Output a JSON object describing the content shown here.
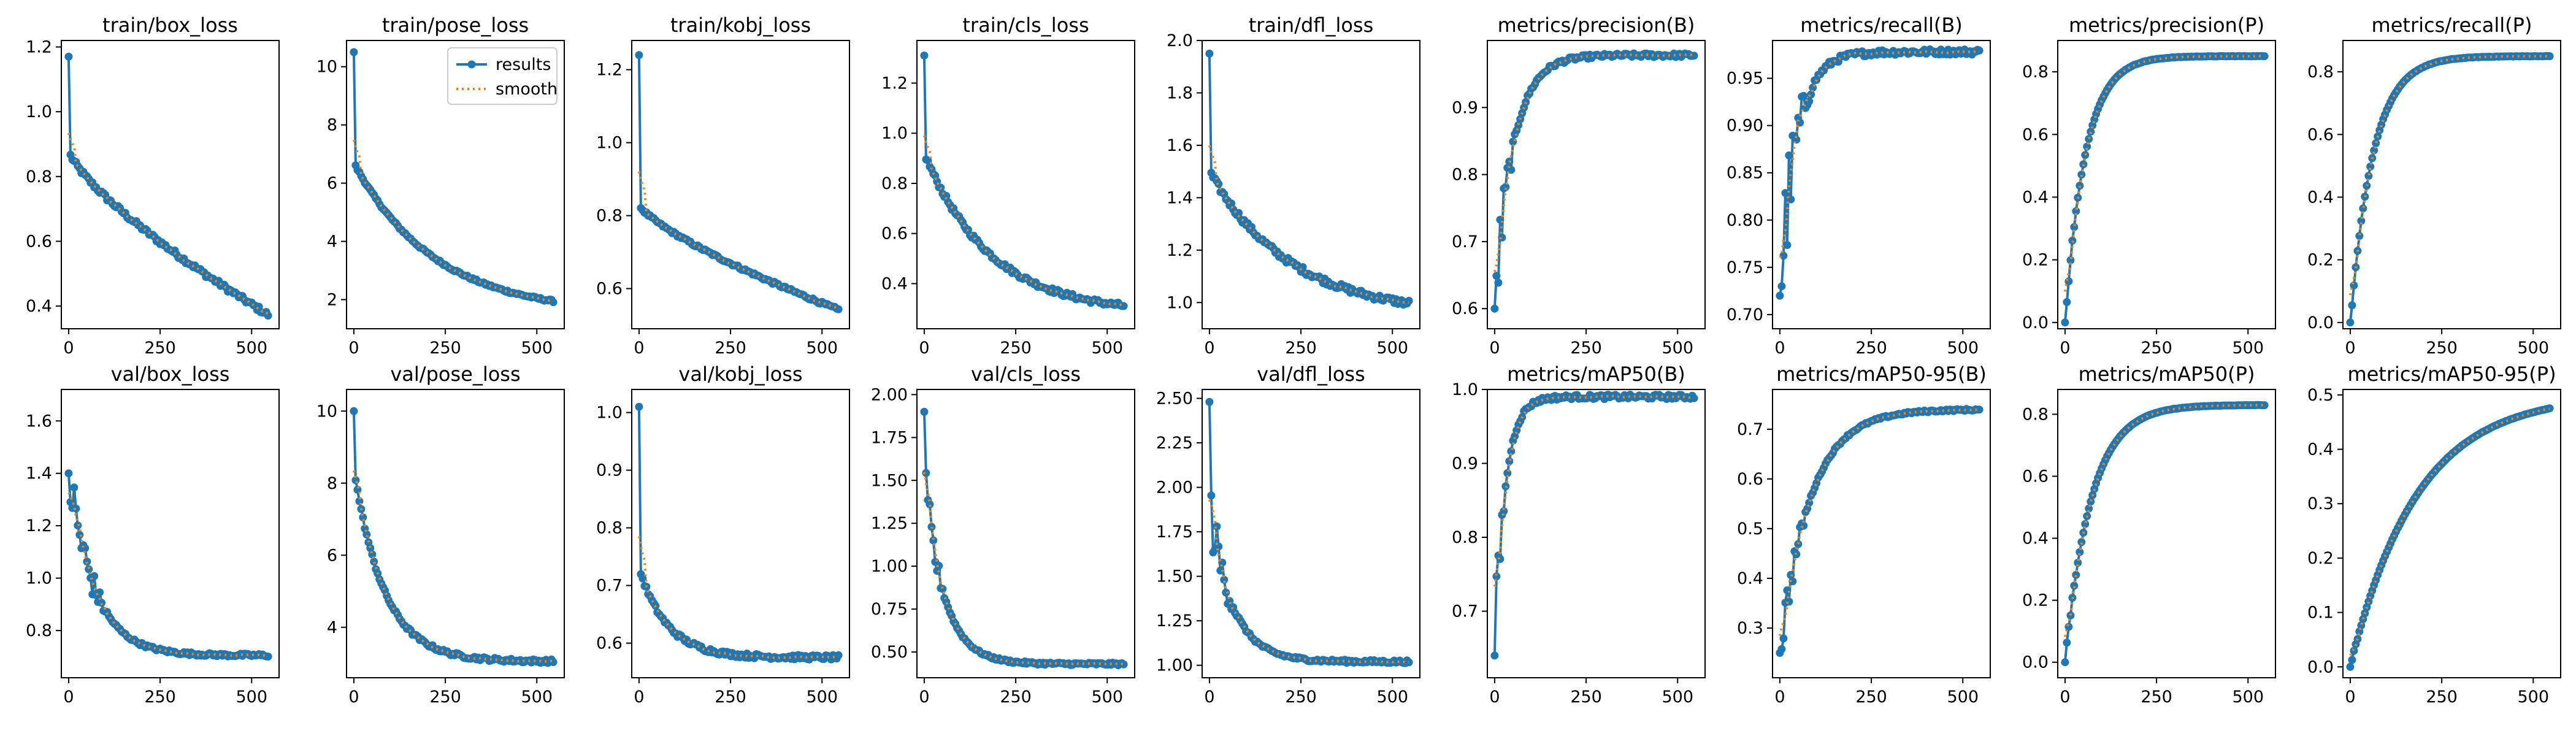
{
  "colors": {
    "results": "#1f77b4",
    "smooth": "#ff7f0e"
  },
  "legend": {
    "entries": [
      "results",
      "smooth"
    ],
    "placement": "top-right",
    "panel": "train/pose_loss"
  },
  "chart_data": [
    {
      "type": "line",
      "title": "train/box_loss",
      "xlim": [
        -20,
        575
      ],
      "ylim": [
        0.33,
        1.22
      ],
      "xticks": [
        0,
        250,
        500
      ],
      "yticks": [
        0.4,
        0.6,
        0.8,
        1.0,
        1.2
      ],
      "ytick_labels": [
        "0.4",
        "0.6",
        "0.8",
        "1.0",
        "1.2"
      ],
      "curve": {
        "kind": "decay",
        "start": 1.17,
        "hold": 0.88,
        "end": 0.37,
        "k": 0.0011,
        "noise": 0.008
      },
      "series": [
        {
          "name": "results"
        },
        {
          "name": "smooth"
        }
      ]
    },
    {
      "type": "line",
      "title": "train/pose_loss",
      "xlim": [
        -20,
        575
      ],
      "ylim": [
        1.0,
        10.9
      ],
      "xticks": [
        0,
        250,
        500
      ],
      "yticks": [
        2,
        4,
        6,
        8,
        10
      ],
      "ytick_labels": [
        "2",
        "4",
        "6",
        "8",
        "10"
      ],
      "curve": {
        "kind": "decay",
        "start": 10.5,
        "hold": 6.7,
        "end": 1.5,
        "k": 0.0045,
        "noise": 0.04
      },
      "series": [
        {
          "name": "results"
        },
        {
          "name": "smooth"
        }
      ]
    },
    {
      "type": "line",
      "title": "train/kobj_loss",
      "xlim": [
        -20,
        575
      ],
      "ylim": [
        0.49,
        1.28
      ],
      "xticks": [
        0,
        250,
        500
      ],
      "yticks": [
        0.6,
        0.8,
        1.0,
        1.2
      ],
      "ytick_labels": [
        "0.6",
        "0.8",
        "1.0",
        "1.2"
      ],
      "curve": {
        "kind": "decay",
        "start": 1.24,
        "hold": 0.83,
        "end": 0.54,
        "k": 0.0017,
        "noise": 0.004
      },
      "series": [
        {
          "name": "results"
        },
        {
          "name": "smooth"
        }
      ]
    },
    {
      "type": "line",
      "title": "train/cls_loss",
      "xlim": [
        -20,
        575
      ],
      "ylim": [
        0.22,
        1.37
      ],
      "xticks": [
        0,
        250,
        500
      ],
      "yticks": [
        0.4,
        0.6,
        0.8,
        1.0,
        1.2
      ],
      "ytick_labels": [
        "0.4",
        "0.6",
        "0.8",
        "1.0",
        "1.2"
      ],
      "curve": {
        "kind": "decay",
        "start": 1.31,
        "hold": 0.92,
        "end": 0.28,
        "k": 0.0055,
        "noise": 0.01
      },
      "series": [
        {
          "name": "results"
        },
        {
          "name": "smooth"
        }
      ]
    },
    {
      "type": "line",
      "title": "train/dfl_loss",
      "xlim": [
        -20,
        575
      ],
      "ylim": [
        0.9,
        2.0
      ],
      "xticks": [
        0,
        250,
        500
      ],
      "yticks": [
        1.0,
        1.2,
        1.4,
        1.6,
        1.8,
        2.0
      ],
      "ytick_labels": [
        "1.0",
        "1.2",
        "1.4",
        "1.6",
        "1.8",
        "2.0"
      ],
      "curve": {
        "kind": "decay",
        "start": 1.95,
        "hold": 1.5,
        "end": 0.95,
        "k": 0.0045,
        "noise": 0.012
      },
      "series": [
        {
          "name": "results"
        },
        {
          "name": "smooth"
        }
      ]
    },
    {
      "type": "line",
      "title": "metrics/precision(B)",
      "xlim": [
        -20,
        575
      ],
      "ylim": [
        0.57,
        1.0
      ],
      "xticks": [
        0,
        250,
        500
      ],
      "yticks": [
        0.6,
        0.7,
        0.8,
        0.9
      ],
      "ytick_labels": [
        "0.6",
        "0.7",
        "0.8",
        "0.9"
      ],
      "curve": {
        "kind": "rise",
        "start": 0.6,
        "end": 0.978,
        "k": 0.02,
        "noise": 0.06,
        "noise_until": 60
      },
      "series": [
        {
          "name": "results"
        },
        {
          "name": "smooth"
        }
      ]
    },
    {
      "type": "line",
      "title": "metrics/recall(B)",
      "xlim": [
        -20,
        575
      ],
      "ylim": [
        0.685,
        0.99
      ],
      "xticks": [
        0,
        250,
        500
      ],
      "yticks": [
        0.7,
        0.75,
        0.8,
        0.85,
        0.9,
        0.95
      ],
      "ytick_labels": [
        "0.70",
        "0.75",
        "0.80",
        "0.85",
        "0.90",
        "0.95"
      ],
      "curve": {
        "kind": "rise",
        "start": 0.72,
        "end": 0.978,
        "k": 0.022,
        "noise": 0.06,
        "noise_until": 90
      },
      "series": [
        {
          "name": "results"
        },
        {
          "name": "smooth"
        }
      ]
    },
    {
      "type": "line",
      "title": "metrics/precision(P)",
      "xlim": [
        -20,
        575
      ],
      "ylim": [
        -0.02,
        0.9
      ],
      "xticks": [
        0,
        250,
        500
      ],
      "yticks": [
        0.0,
        0.2,
        0.4,
        0.6,
        0.8
      ],
      "ytick_labels": [
        "0.0",
        "0.2",
        "0.4",
        "0.6",
        "0.8"
      ],
      "curve": {
        "kind": "rise",
        "start": 0.0,
        "end": 0.85,
        "k": 0.018,
        "noise": 0.012,
        "noise_until": 40
      },
      "series": [
        {
          "name": "results"
        },
        {
          "name": "smooth"
        }
      ]
    },
    {
      "type": "line",
      "title": "metrics/recall(P)",
      "xlim": [
        -20,
        575
      ],
      "ylim": [
        -0.02,
        0.9
      ],
      "xticks": [
        0,
        250,
        500
      ],
      "yticks": [
        0.0,
        0.2,
        0.4,
        0.6,
        0.8
      ],
      "ytick_labels": [
        "0.0",
        "0.2",
        "0.4",
        "0.6",
        "0.8"
      ],
      "curve": {
        "kind": "rise",
        "start": 0.0,
        "end": 0.85,
        "k": 0.016,
        "noise": 0.012,
        "noise_until": 40
      },
      "series": [
        {
          "name": "results"
        },
        {
          "name": "smooth"
        }
      ]
    },
    {
      "type": "line",
      "title": "val/box_loss",
      "xlim": [
        -20,
        575
      ],
      "ylim": [
        0.62,
        1.72
      ],
      "xticks": [
        0,
        250,
        500
      ],
      "yticks": [
        0.8,
        1.0,
        1.2,
        1.4,
        1.6
      ],
      "ytick_labels": [
        "0.8",
        "1.0",
        "1.2",
        "1.4",
        "1.6"
      ],
      "curve": {
        "kind": "decay",
        "start": 1.4,
        "hold": 1.4,
        "end": 0.705,
        "k": 0.014,
        "noise": 0.12,
        "noise_until": 110
      },
      "series": [
        {
          "name": "results"
        },
        {
          "name": "smooth"
        }
      ]
    },
    {
      "type": "line",
      "title": "val/pose_loss",
      "xlim": [
        -20,
        575
      ],
      "ylim": [
        2.6,
        10.6
      ],
      "xticks": [
        0,
        250,
        500
      ],
      "yticks": [
        4,
        6,
        8,
        10
      ],
      "ytick_labels": [
        "4",
        "6",
        "8",
        "10"
      ],
      "curve": {
        "kind": "decay",
        "start": 10.0,
        "hold": 8.4,
        "end": 3.05,
        "k": 0.012,
        "noise": 0.05
      },
      "series": [
        {
          "name": "results"
        },
        {
          "name": "smooth"
        }
      ]
    },
    {
      "type": "line",
      "title": "val/kobj_loss",
      "xlim": [
        -20,
        575
      ],
      "ylim": [
        0.54,
        1.04
      ],
      "xticks": [
        0,
        250,
        500
      ],
      "yticks": [
        0.6,
        0.7,
        0.8,
        0.9,
        1.0
      ],
      "ytick_labels": [
        "0.6",
        "0.7",
        "0.8",
        "0.9",
        "1.0"
      ],
      "curve": {
        "kind": "decay",
        "start": 1.01,
        "hold": 0.73,
        "end": 0.575,
        "k": 0.013,
        "noise": 0.004
      },
      "series": [
        {
          "name": "results"
        },
        {
          "name": "smooth"
        }
      ]
    },
    {
      "type": "line",
      "title": "val/cls_loss",
      "xlim": [
        -20,
        575
      ],
      "ylim": [
        0.35,
        2.03
      ],
      "xticks": [
        0,
        250,
        500
      ],
      "yticks": [
        0.5,
        0.75,
        1.0,
        1.25,
        1.5,
        1.75,
        2.0
      ],
      "ytick_labels": [
        "0.50",
        "0.75",
        "1.00",
        "1.25",
        "1.50",
        "1.75",
        "2.00"
      ],
      "curve": {
        "kind": "decay",
        "start": 1.9,
        "hold": 1.5,
        "end": 0.43,
        "k": 0.018,
        "noise": 0.15,
        "noise_until": 60
      },
      "series": [
        {
          "name": "results"
        },
        {
          "name": "smooth"
        }
      ]
    },
    {
      "type": "line",
      "title": "val/dfl_loss",
      "xlim": [
        -20,
        575
      ],
      "ylim": [
        0.93,
        2.55
      ],
      "xticks": [
        0,
        250,
        500
      ],
      "yticks": [
        1.0,
        1.25,
        1.5,
        1.75,
        2.0,
        2.25,
        2.5
      ],
      "ytick_labels": [
        "1.00",
        "1.25",
        "1.50",
        "1.75",
        "2.00",
        "2.25",
        "2.50"
      ],
      "curve": {
        "kind": "decay",
        "start": 2.48,
        "hold": 1.9,
        "end": 1.02,
        "k": 0.016,
        "noise": 0.17,
        "noise_until": 80
      },
      "series": [
        {
          "name": "results"
        },
        {
          "name": "smooth"
        }
      ]
    },
    {
      "type": "line",
      "title": "metrics/mAP50(B)",
      "xlim": [
        -20,
        575
      ],
      "ylim": [
        0.61,
        1.0
      ],
      "xticks": [
        0,
        250,
        500
      ],
      "yticks": [
        0.7,
        0.8,
        0.9,
        1.0
      ],
      "ytick_labels": [
        "0.7",
        "0.8",
        "0.9",
        "1.0"
      ],
      "curve": {
        "kind": "rise",
        "start": 0.64,
        "end": 0.99,
        "k": 0.035,
        "noise": 0.06,
        "noise_until": 30
      },
      "series": [
        {
          "name": "results"
        },
        {
          "name": "smooth"
        }
      ]
    },
    {
      "type": "line",
      "title": "metrics/mAP50-95(B)",
      "xlim": [
        -20,
        575
      ],
      "ylim": [
        0.2,
        0.78
      ],
      "xticks": [
        0,
        250,
        500
      ],
      "yticks": [
        0.3,
        0.4,
        0.5,
        0.6,
        0.7
      ],
      "ytick_labels": [
        "0.3",
        "0.4",
        "0.5",
        "0.6",
        "0.7"
      ],
      "curve": {
        "kind": "rise",
        "start": 0.25,
        "end": 0.74,
        "k": 0.012,
        "noise": 0.04,
        "noise_until": 90
      },
      "series": [
        {
          "name": "results"
        },
        {
          "name": "smooth"
        }
      ]
    },
    {
      "type": "line",
      "title": "metrics/mAP50(P)",
      "xlim": [
        -20,
        575
      ],
      "ylim": [
        -0.05,
        0.88
      ],
      "xticks": [
        0,
        250,
        500
      ],
      "yticks": [
        0.0,
        0.2,
        0.4,
        0.6,
        0.8
      ],
      "ytick_labels": [
        "0.0",
        "0.2",
        "0.4",
        "0.6",
        "0.8"
      ],
      "curve": {
        "kind": "rise",
        "start": 0.0,
        "end": 0.83,
        "k": 0.014,
        "noise": 0.01,
        "noise_until": 40
      },
      "series": [
        {
          "name": "results"
        },
        {
          "name": "smooth"
        }
      ]
    },
    {
      "type": "line",
      "title": "metrics/mAP50-95(P)",
      "xlim": [
        -20,
        575
      ],
      "ylim": [
        -0.02,
        0.51
      ],
      "xticks": [
        0,
        250,
        500
      ],
      "yticks": [
        0.0,
        0.1,
        0.2,
        0.3,
        0.4,
        0.5
      ],
      "ytick_labels": [
        "0.0",
        "0.1",
        "0.2",
        "0.3",
        "0.4",
        "0.5"
      ],
      "curve": {
        "kind": "rise",
        "start": 0.0,
        "end": 0.5,
        "k": 0.0055,
        "noise": 0.005,
        "noise_until": 30
      },
      "series": [
        {
          "name": "results"
        },
        {
          "name": "smooth"
        }
      ]
    }
  ]
}
